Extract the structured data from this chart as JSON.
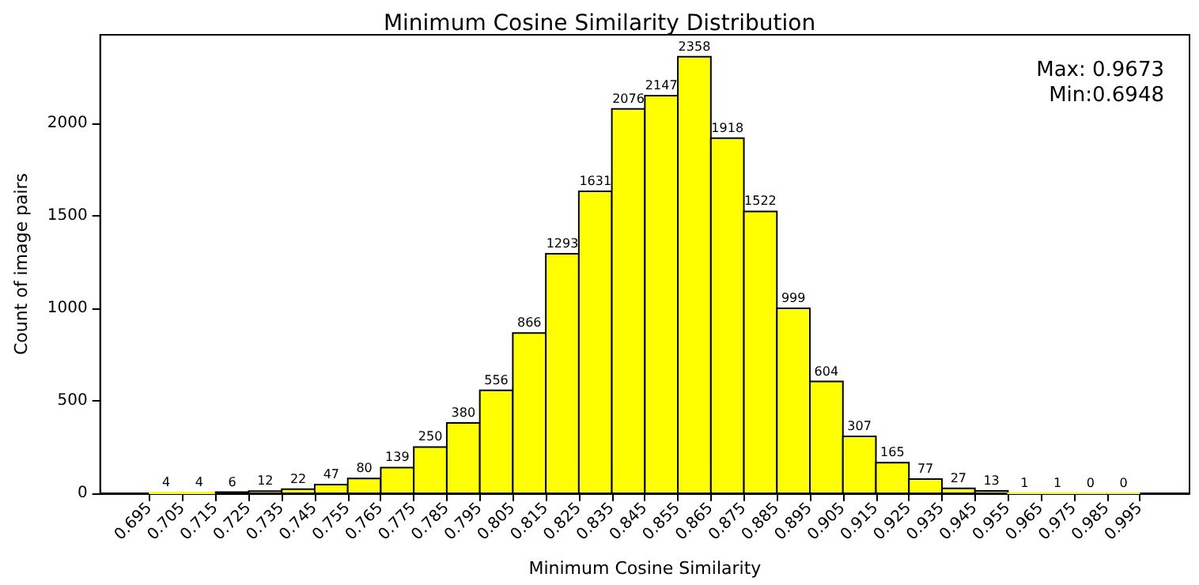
{
  "chart_data": {
    "type": "histogram",
    "title": "Minimum Cosine Similarity Distribution",
    "xlabel": "Minimum Cosine Similarity",
    "ylabel": "Count of image pairs",
    "bins": [
      0.695,
      0.705,
      0.715,
      0.725,
      0.735,
      0.745,
      0.755,
      0.765,
      0.775,
      0.785,
      0.795,
      0.805,
      0.815,
      0.825,
      0.835,
      0.845,
      0.855,
      0.865,
      0.875,
      0.885,
      0.895,
      0.905,
      0.915,
      0.925,
      0.935,
      0.945,
      0.955,
      0.965,
      0.975,
      0.985,
      0.995
    ],
    "values": [
      4,
      4,
      6,
      12,
      22,
      47,
      80,
      139,
      250,
      380,
      556,
      866,
      1293,
      1631,
      2076,
      2147,
      2358,
      1918,
      1522,
      999,
      604,
      307,
      165,
      77,
      27,
      13,
      1,
      1,
      0,
      0
    ],
    "color": "#ffff00",
    "data_labels": true,
    "grid": false,
    "xlim": [
      0.68,
      1.01
    ],
    "ylim": [
      0,
      2476
    ],
    "xticks": [
      0.695,
      0.705,
      0.715,
      0.725,
      0.735,
      0.745,
      0.755,
      0.765,
      0.775,
      0.785,
      0.795,
      0.805,
      0.815,
      0.825,
      0.835,
      0.845,
      0.855,
      0.865,
      0.875,
      0.885,
      0.895,
      0.905,
      0.915,
      0.925,
      0.935,
      0.945,
      0.955,
      0.965,
      0.975,
      0.985,
      0.995
    ],
    "yticks": [
      0,
      500,
      1000,
      1500,
      2000
    ],
    "annotations": [
      "Max: 0.9673",
      "Min:0.6948"
    ]
  }
}
